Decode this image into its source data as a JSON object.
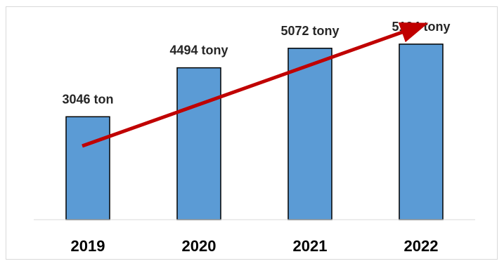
{
  "chart_data": {
    "type": "bar",
    "categories": [
      "2019",
      "2020",
      "2021",
      "2022"
    ],
    "values": [
      3046,
      4494,
      5072,
      5194
    ],
    "data_labels": [
      "3046 ton",
      "4494 tony",
      "5072 tony",
      "5194 tony"
    ],
    "title": "",
    "xlabel": "",
    "ylabel": "",
    "ylim": [
      0,
      6500
    ],
    "grid": false,
    "legend": "none",
    "bar_color": "#5b9bd5",
    "bar_outline": "#000000",
    "trend_arrow_color": "#c00000"
  }
}
